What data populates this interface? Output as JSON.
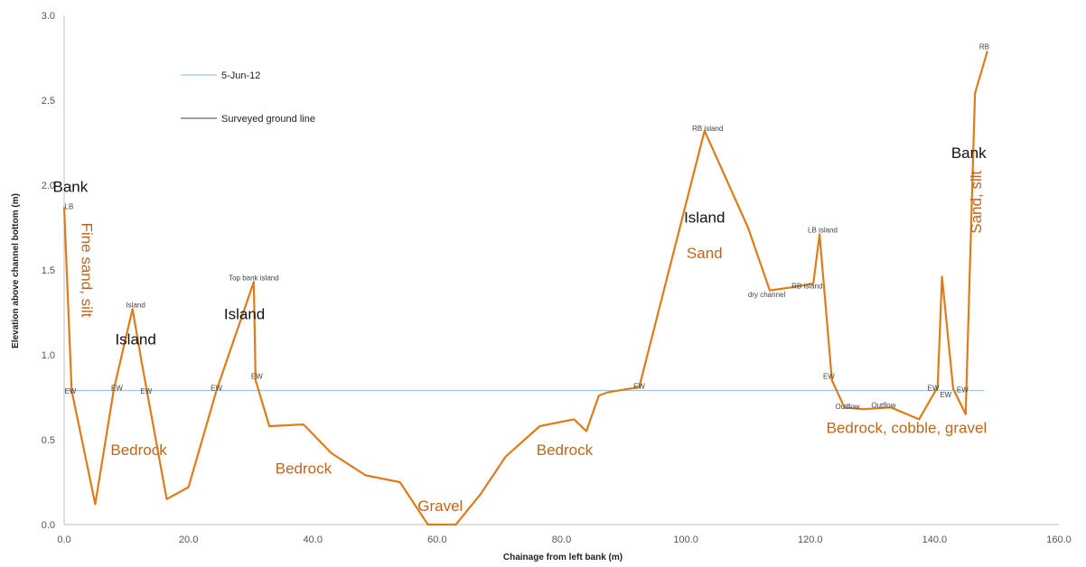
{
  "chart_data": {
    "type": "line",
    "title": "",
    "xlabel": "Chainage from left bank (m)",
    "ylabel": "Elevation above channel bottom (m)",
    "xlim": [
      0,
      160
    ],
    "ylim": [
      0,
      3
    ],
    "x_ticks": [
      "0.0",
      "20.0",
      "40.0",
      "60.0",
      "80.0",
      "100.0",
      "120.0",
      "140.0",
      "160.0"
    ],
    "y_ticks": [
      "0.0",
      "0.5",
      "1.0",
      "1.5",
      "2.0",
      "2.5",
      "3.0"
    ],
    "grid": false,
    "legend_position": "top-left",
    "colors": {
      "water": "#9dc3e6",
      "ground": "#e07b1a",
      "orange_text": "#c0651d",
      "black_text": "#111111"
    },
    "series": [
      {
        "name": "5-Jun-12",
        "x": [
          0,
          148
        ],
        "y": [
          0.79,
          0.79
        ]
      },
      {
        "name": "Surveyed ground line",
        "x": [
          0,
          1.2,
          5,
          8,
          11,
          12.5,
          16.5,
          20,
          24.5,
          30.5,
          30.8,
          33,
          38.5,
          43,
          48.5,
          54,
          58.5,
          63,
          67,
          71,
          76.5,
          82,
          84,
          86,
          87.5,
          92.5,
          103,
          110,
          113.5,
          117.5,
          120.5,
          121.5,
          123.5,
          125.5,
          128.5,
          133,
          137.5,
          140.5,
          141.2,
          143,
          145,
          146.5,
          148.5
        ],
        "y": [
          1.87,
          0.79,
          0.12,
          0.8,
          1.27,
          0.95,
          0.15,
          0.22,
          0.79,
          1.43,
          0.85,
          0.58,
          0.59,
          0.42,
          0.29,
          0.25,
          0.0,
          0.0,
          0.18,
          0.4,
          0.58,
          0.62,
          0.55,
          0.76,
          0.78,
          0.81,
          2.32,
          1.75,
          1.38,
          1.4,
          1.42,
          1.71,
          0.85,
          0.69,
          0.68,
          0.69,
          0.62,
          0.81,
          1.46,
          0.8,
          0.65,
          2.54,
          2.79
        ]
      }
    ],
    "point_labels": [
      {
        "text": "LB",
        "x": 0.8,
        "y": 1.86
      },
      {
        "text": "EW",
        "x": 1.0,
        "y": 0.77
      },
      {
        "text": "EW",
        "x": 8.5,
        "y": 0.79
      },
      {
        "text": "Island",
        "x": 11.5,
        "y": 1.28
      },
      {
        "text": "EW",
        "x": 13.2,
        "y": 0.77
      },
      {
        "text": "EW",
        "x": 24.5,
        "y": 0.79
      },
      {
        "text": "Top bank island",
        "x": 30.5,
        "y": 1.44
      },
      {
        "text": "EW",
        "x": 31.0,
        "y": 0.86
      },
      {
        "text": "EW",
        "x": 92.5,
        "y": 0.8
      },
      {
        "text": "RB island",
        "x": 103.5,
        "y": 2.32
      },
      {
        "text": "dry channel",
        "x": 113.0,
        "y": 1.34
      },
      {
        "text": "RB island",
        "x": 119.5,
        "y": 1.39
      },
      {
        "text": "LB island",
        "x": 122.0,
        "y": 1.72
      },
      {
        "text": "EW",
        "x": 123.0,
        "y": 0.86
      },
      {
        "text": "Outflow",
        "x": 126.0,
        "y": 0.68
      },
      {
        "text": "Outflow",
        "x": 131.8,
        "y": 0.69
      },
      {
        "text": "EW",
        "x": 139.8,
        "y": 0.79
      },
      {
        "text": "EW",
        "x": 141.8,
        "y": 0.75
      },
      {
        "text": "EW",
        "x": 144.5,
        "y": 0.78
      },
      {
        "text": "RB",
        "x": 148.0,
        "y": 2.8
      }
    ],
    "black_labels": [
      {
        "text": "Bank",
        "x": 1.0,
        "y": 1.96
      },
      {
        "text": "Island",
        "x": 11.5,
        "y": 1.06
      },
      {
        "text": "Island",
        "x": 29.0,
        "y": 1.21
      },
      {
        "text": "Island",
        "x": 103.0,
        "y": 1.78
      },
      {
        "text": "Bank",
        "x": 145.5,
        "y": 2.16
      }
    ],
    "orange_labels": [
      {
        "text": "Fine sand, silt",
        "x": 2.8,
        "y": 1.5,
        "rotate": 90
      },
      {
        "text": "Bedrock",
        "x": 12.0,
        "y": 0.41
      },
      {
        "text": "Bedrock",
        "x": 38.5,
        "y": 0.3
      },
      {
        "text": "Gravel",
        "x": 60.5,
        "y": 0.08
      },
      {
        "text": "Bedrock",
        "x": 80.5,
        "y": 0.41
      },
      {
        "text": "Sand",
        "x": 103.0,
        "y": 1.57
      },
      {
        "text": "Bedrock, cobble, gravel",
        "x": 135.5,
        "y": 0.54
      },
      {
        "text": "Sand, silt",
        "x": 147.5,
        "y": 1.9,
        "rotate": -90
      }
    ]
  }
}
